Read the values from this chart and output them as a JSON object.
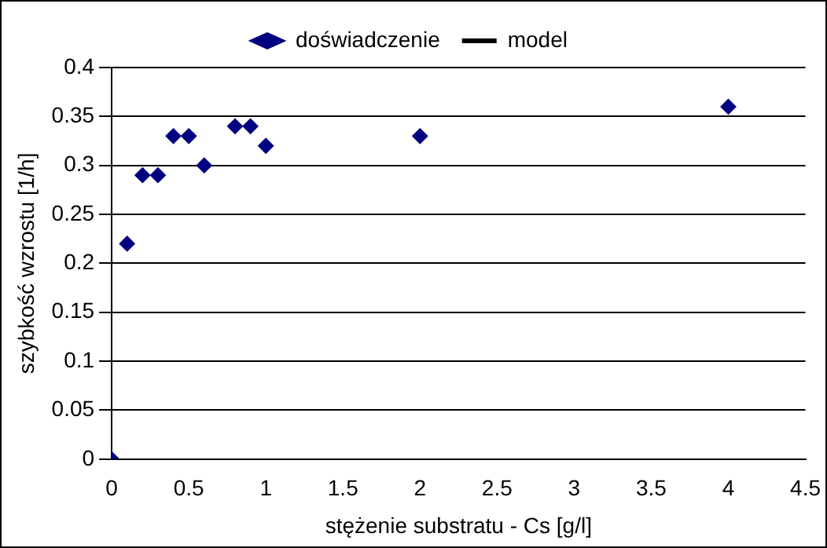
{
  "chart_data": {
    "type": "scatter",
    "xlabel": "stężenie substratu - Cs [g/l]",
    "ylabel": "szybkość wzrostu [1/h]",
    "series": [
      {
        "name": "doświadczenie",
        "type": "scatter",
        "color": "#000080",
        "x": [
          0,
          0.1,
          0.2,
          0.3,
          0.4,
          0.5,
          0.6,
          0.8,
          0.9,
          1,
          2,
          4
        ],
        "values": [
          0,
          0.22,
          0.29,
          0.29,
          0.33,
          0.33,
          0.3,
          0.34,
          0.34,
          0.32,
          0.33,
          0.36
        ]
      },
      {
        "name": "model",
        "type": "line",
        "color": "#000000"
      }
    ],
    "xlim": [
      0,
      4.5
    ],
    "xticks": [
      0,
      0.5,
      1,
      1.5,
      2,
      2.5,
      3,
      3.5,
      4,
      4.5
    ],
    "ylim": [
      0,
      0.4
    ],
    "yticks": [
      0,
      0.05,
      0.1,
      0.15,
      0.2,
      0.25,
      0.3,
      0.35,
      0.4
    ],
    "grid": "y",
    "legend": "top",
    "marker": "diamond"
  }
}
